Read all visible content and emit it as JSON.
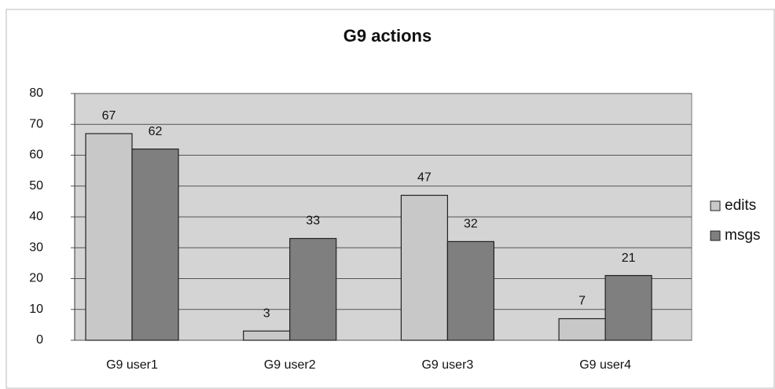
{
  "chart_data": {
    "type": "bar",
    "title": "G9 actions",
    "categories": [
      "G9 user1",
      "G9 user2",
      "G9 user3",
      "G9 user4"
    ],
    "series": [
      {
        "name": "edits",
        "color": "#c8c8c8",
        "values": [
          67,
          3,
          47,
          7
        ]
      },
      {
        "name": "msgs",
        "color": "#7f7f7f",
        "values": [
          62,
          33,
          32,
          21
        ]
      }
    ],
    "ylim": [
      0,
      80
    ],
    "yticks": [
      0,
      10,
      20,
      30,
      40,
      50,
      60,
      70,
      80
    ],
    "grid": true,
    "legend": "right"
  }
}
